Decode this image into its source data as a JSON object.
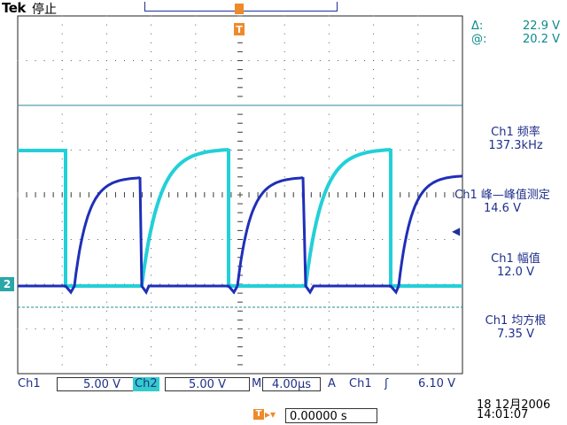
{
  "brand": "Tek",
  "run_status": "停止",
  "trigger_marker": "T",
  "cursor": {
    "delta": "Δ:",
    "delta_value": "22.9 V",
    "at": "@:",
    "at_value": "20.2 V"
  },
  "measurements": [
    {
      "label": "Ch1 频率",
      "value": "137.3kHz"
    },
    {
      "label": "Ch1 峰—峰值测定",
      "value": "14.6 V"
    },
    {
      "label": "Ch1 幅值",
      "value": "12.0 V"
    },
    {
      "label": "Ch1 均方根",
      "value": "7.35 V"
    }
  ],
  "channel_marker": "2",
  "bottom": {
    "ch1_label": "Ch1",
    "ch1_scale": "5.00 V",
    "ch2_label": "Ch2",
    "ch2_scale": "5.00 V",
    "time_label": "M",
    "time_scale": "4.00µs",
    "trig_mode": "A",
    "trig_source": "Ch1",
    "trig_slope": "ʃ",
    "trig_level": "6.10 V"
  },
  "trigger_position": "0.00000 s",
  "date": "18 12月2006",
  "time": "14:01:07",
  "colors": {
    "ch1": "#1f2fb8",
    "ch2": "#22d0d8",
    "grid": "#222222",
    "accent": "#ee8a2a"
  }
}
